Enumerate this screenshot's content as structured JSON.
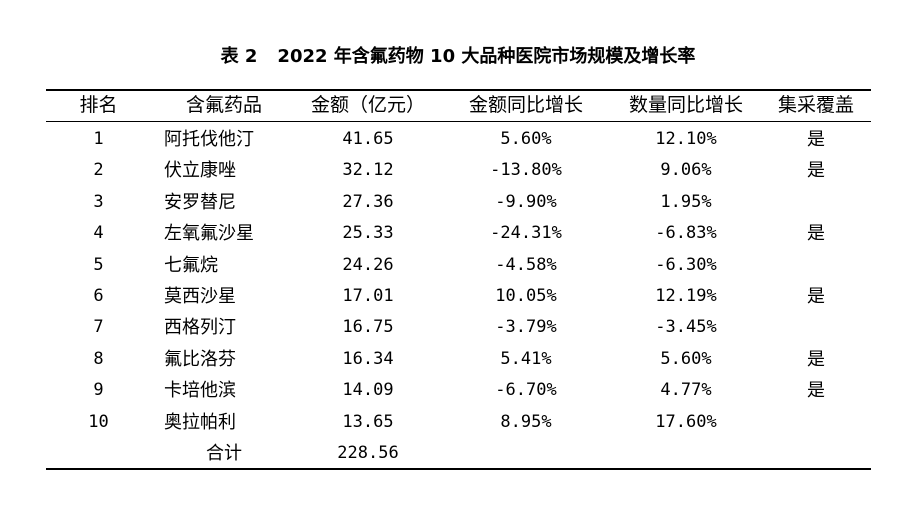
{
  "caption": {
    "number": "表 2",
    "title": "2022 年含氟药物 10 大品种医院市场规模及增长率"
  },
  "headers": {
    "rank": "排名",
    "drug": "含氟药品",
    "amount": "金额（亿元）",
    "amount_yoy": "金额同比增长",
    "quantity_yoy": "数量同比增长",
    "vbp": "集采覆盖"
  },
  "rows": [
    {
      "rank": "1",
      "drug": "阿托伐他汀",
      "amount": "41.65",
      "amount_yoy": "5.60%",
      "quantity_yoy": "12.10%",
      "vbp": "是"
    },
    {
      "rank": "2",
      "drug": "伏立康唑",
      "amount": "32.12",
      "amount_yoy": "-13.80%",
      "quantity_yoy": "9.06%",
      "vbp": "是"
    },
    {
      "rank": "3",
      "drug": "安罗替尼",
      "amount": "27.36",
      "amount_yoy": "-9.90%",
      "quantity_yoy": "1.95%",
      "vbp": ""
    },
    {
      "rank": "4",
      "drug": "左氧氟沙星",
      "amount": "25.33",
      "amount_yoy": "-24.31%",
      "quantity_yoy": "-6.83%",
      "vbp": "是"
    },
    {
      "rank": "5",
      "drug": "七氟烷",
      "amount": "24.26",
      "amount_yoy": "-4.58%",
      "quantity_yoy": "-6.30%",
      "vbp": ""
    },
    {
      "rank": "6",
      "drug": "莫西沙星",
      "amount": "17.01",
      "amount_yoy": "10.05%",
      "quantity_yoy": "12.19%",
      "vbp": "是"
    },
    {
      "rank": "7",
      "drug": "西格列汀",
      "amount": "16.75",
      "amount_yoy": "-3.79%",
      "quantity_yoy": "-3.45%",
      "vbp": ""
    },
    {
      "rank": "8",
      "drug": "氟比洛芬",
      "amount": "16.34",
      "amount_yoy": "5.41%",
      "quantity_yoy": "5.60%",
      "vbp": "是"
    },
    {
      "rank": "9",
      "drug": "卡培他滨",
      "amount": "14.09",
      "amount_yoy": "-6.70%",
      "quantity_yoy": "4.77%",
      "vbp": "是"
    },
    {
      "rank": "10",
      "drug": "奥拉帕利",
      "amount": "13.65",
      "amount_yoy": "8.95%",
      "quantity_yoy": "17.60%",
      "vbp": ""
    }
  ],
  "total": {
    "label": "合计",
    "amount": "228.56"
  }
}
